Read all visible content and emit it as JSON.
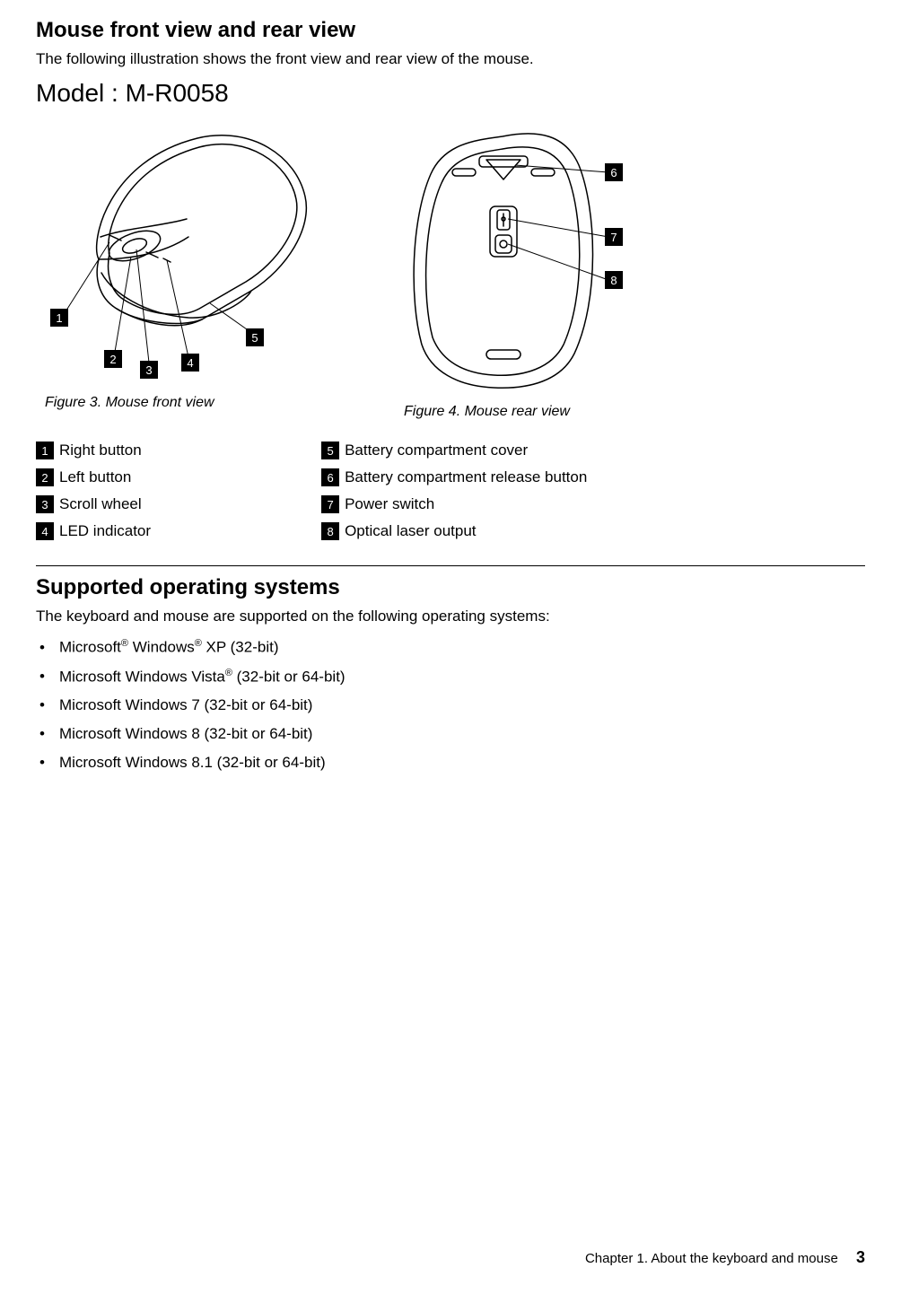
{
  "section1": {
    "title": "Mouse front view and rear view",
    "intro": "The following illustration shows the front view and rear view of the mouse.",
    "model": "Model : M-R0058",
    "figure3_caption": "Figure 3.  Mouse front view",
    "figure4_caption": "Figure 4.  Mouse rear view",
    "callouts_front": {
      "1": "1",
      "2": "2",
      "3": "3",
      "4": "4",
      "5": "5"
    },
    "callouts_rear": {
      "6": "6",
      "7": "7",
      "8": "8"
    },
    "legend_left": [
      {
        "num": "1",
        "label": "Right button"
      },
      {
        "num": "2",
        "label": "Left button"
      },
      {
        "num": "3",
        "label": "Scroll wheel"
      },
      {
        "num": "4",
        "label": "LED indicator"
      }
    ],
    "legend_right": [
      {
        "num": "5",
        "label": "Battery compartment cover"
      },
      {
        "num": "6",
        "label": "Battery compartment release button"
      },
      {
        "num": "7",
        "label": "Power switch"
      },
      {
        "num": "8",
        "label": "Optical laser output"
      }
    ]
  },
  "section2": {
    "title": "Supported operating systems",
    "intro": "The keyboard and mouse are supported on the following operating systems:",
    "os_items": [
      {
        "pre": "Microsoft",
        "sup1": "®",
        "mid": " Windows",
        "sup2": "®",
        "post": " XP (32-bit)"
      },
      {
        "pre": "Microsoft Windows Vista",
        "sup1": "®",
        "mid": "",
        "sup2": "",
        "post": " (32-bit or 64-bit)"
      },
      {
        "pre": "Microsoft Windows 7 (32-bit or 64-bit)",
        "sup1": "",
        "mid": "",
        "sup2": "",
        "post": ""
      },
      {
        "pre": "Microsoft Windows 8 (32-bit or 64-bit)",
        "sup1": "",
        "mid": "",
        "sup2": "",
        "post": ""
      },
      {
        "pre": "Microsoft Windows 8.1 (32-bit or 64-bit)",
        "sup1": "",
        "mid": "",
        "sup2": "",
        "post": ""
      }
    ]
  },
  "footer": {
    "chapter": "Chapter 1. About the keyboard and mouse",
    "page": "3"
  },
  "style": {
    "stroke": "#000000",
    "stroke_width": 1.5,
    "bg": "#ffffff",
    "callout_bg": "#000000",
    "callout_fg": "#ffffff"
  }
}
